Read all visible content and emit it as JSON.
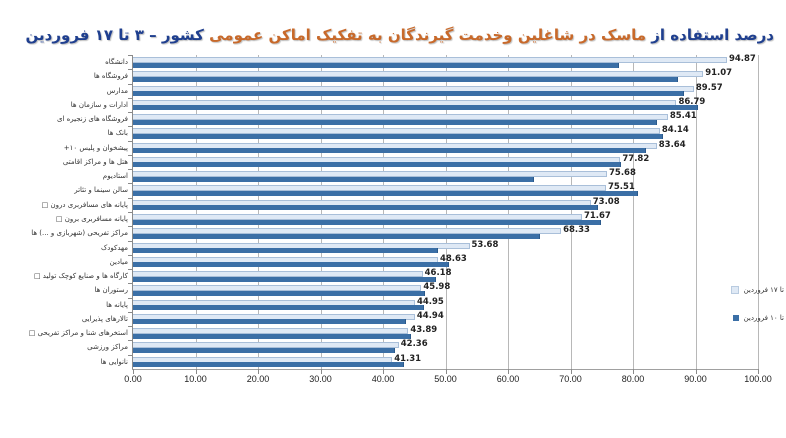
{
  "title": {
    "part1": "درصد استفاده از",
    "part2": "ماسک در شاغلین وخدمت گیرندگان به تفکیک اماکن عمومی",
    "part3": "کشور  –  ۳ تا ۱۷ فروردین",
    "colors": {
      "blue": "#1f3f8f",
      "orange": "#c8692a"
    }
  },
  "legend": [
    {
      "label": "تا ۱۷ فروردین",
      "color": "#dfe9f5"
    },
    {
      "label": "تا ۱۰ فروردین",
      "color": "#3b6fa6"
    }
  ],
  "chart_data": {
    "type": "bar",
    "orientation": "horizontal",
    "title": "درصد استفاده از ماسک در شاغلین وخدمت گیرندگان به تفکیک اماکن عمومی کشور – ۳ تا ۱۷ فروردین",
    "xlabel": "",
    "ylabel": "",
    "xlim": [
      0,
      100
    ],
    "x_ticks": [
      "0.00",
      "10.00",
      "20.00",
      "30.00",
      "40.00",
      "50.00",
      "60.00",
      "70.00",
      "80.00",
      "90.00",
      "100.00"
    ],
    "grid": true,
    "legend_position": "right",
    "categories": [
      "دانشگاه",
      "فروشگاه ها",
      "مدارس",
      "ادارات و سازمان ها",
      "فروشگاه های زنجیره ای",
      "بانک ها",
      "پیشخوان و پلیس ۱۰+",
      "هتل ها و مراکز اقامتی",
      "استادیوم",
      "سالن سینما و تئاتر",
      "پایانه های مسافربری درون □",
      "پایانه مسافربری برون □",
      "مراکز تفریحی (شهربازی و ...) ها",
      "مهدکودک",
      "میادین",
      "کارگاه ها و صنایع کوچک تولید □",
      "رستوران ها",
      "پایانه ها",
      "تالارهای پذیرایی",
      "استخرهای شنا و مراکز تفریحی □",
      "مراکز ورزشی",
      "نانوایی ها"
    ],
    "series": [
      {
        "name": "تا ۱۷ فروردین",
        "color": "#dfe9f5",
        "values": [
          94.87,
          91.07,
          89.57,
          86.79,
          85.41,
          84.14,
          83.64,
          77.82,
          75.68,
          75.51,
          73.08,
          71.67,
          68.33,
          53.68,
          48.63,
          46.18,
          45.98,
          44.95,
          44.94,
          43.89,
          42.36,
          41.31
        ],
        "labels": [
          "94.87",
          "91.07",
          "89.57",
          "86.79",
          "85.41",
          "84.14",
          "83.64",
          "77.82",
          "75.68",
          "75.51",
          "73.08",
          "71.67",
          "68.33",
          "53.68",
          "48.63",
          "46.18",
          "45.98",
          "44.95",
          "44.94",
          "43.89",
          "42.36",
          "41.31"
        ]
      },
      {
        "name": "تا ۱۰ فروردین",
        "color": "#3b6fa6",
        "values": [
          77.6,
          87.0,
          88.0,
          90.2,
          83.7,
          84.6,
          81.9,
          77.9,
          64.0,
          80.6,
          74.2,
          74.7,
          65.0,
          48.7,
          50.4,
          48.3,
          46.6,
          46.4,
          43.5,
          44.3,
          41.8,
          43.2
        ]
      }
    ]
  }
}
